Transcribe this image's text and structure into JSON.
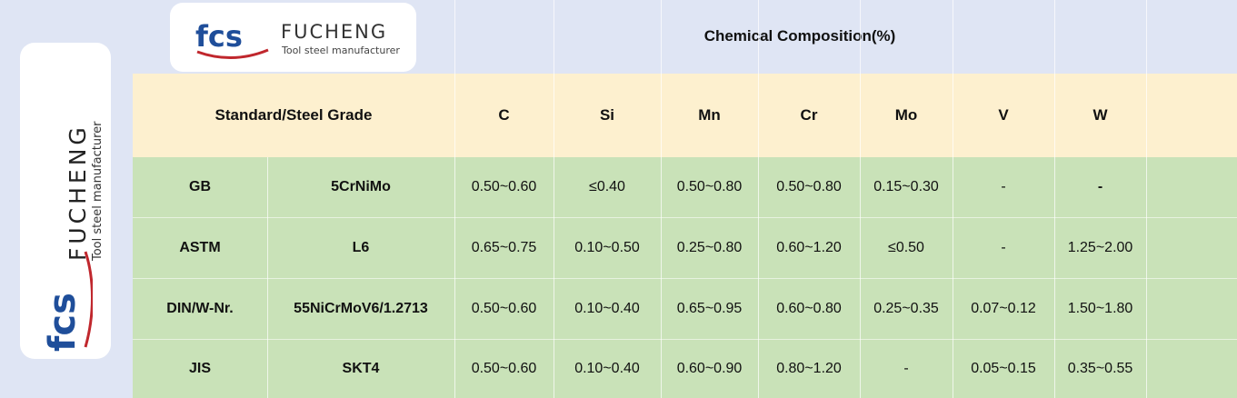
{
  "brand": {
    "logo_mark": "fcs",
    "name": "FUCHENG",
    "tagline": "Tool steel manufacturer"
  },
  "title": "Chemical Composition(%)",
  "header": {
    "standard": "Standard/Steel Grade",
    "elements": [
      "C",
      "Si",
      "Mn",
      "Cr",
      "Mo",
      "V",
      "W"
    ]
  },
  "rows": [
    {
      "standard": "GB",
      "grade": "5CrNiMo",
      "values": [
        "0.50~0.60",
        "≤0.40",
        "0.50~0.80",
        "0.50~0.80",
        "0.15~0.30",
        "-",
        "-"
      ]
    },
    {
      "standard": "ASTM",
      "grade": "L6",
      "values": [
        "0.65~0.75",
        "0.10~0.50",
        "0.25~0.80",
        "0.60~1.20",
        "≤0.50",
        "-",
        "1.25~2.00"
      ]
    },
    {
      "standard": "DIN/W-Nr.",
      "grade": "55NiCrMoV6/1.2713",
      "values": [
        "0.50~0.60",
        "0.10~0.40",
        "0.65~0.95",
        "0.60~0.80",
        "0.25~0.35",
        "0.07~0.12",
        "1.50~1.80"
      ]
    },
    {
      "standard": "JIS",
      "grade": "SKT4",
      "values": [
        "0.50~0.60",
        "0.10~0.40",
        "0.60~0.90",
        "0.80~1.20",
        "-",
        "0.05~0.15",
        "0.35~0.55"
      ]
    }
  ],
  "colors": {
    "page_bg": "#dfe5f4",
    "header_bg": "#fdf0cf",
    "data_bg": "#c9e2b8",
    "logo_blue": "#1f4e9a",
    "logo_red": "#c0272d"
  }
}
